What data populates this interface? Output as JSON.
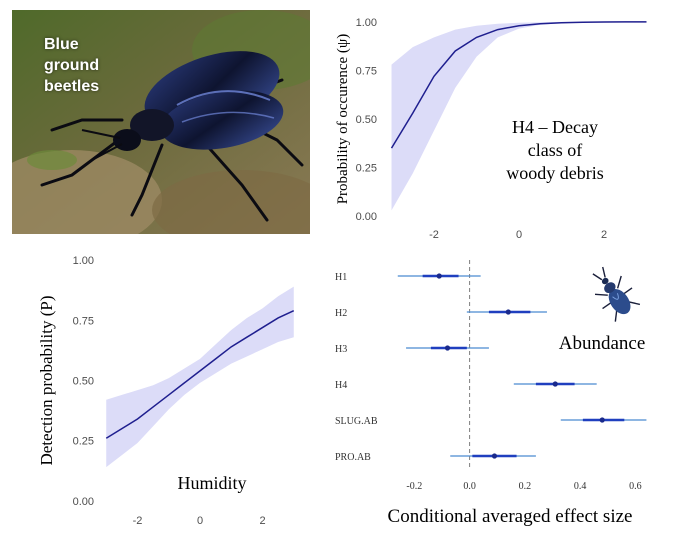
{
  "photo": {
    "label": "Blue\nground\nbeetles"
  },
  "colors": {
    "line": "#1f1f8f",
    "ribbon": "#dcdcf8",
    "point": "#1a2a8c",
    "ci_inner": "#1f3fbf",
    "ci_outer": "#4a8ad0",
    "zero_line": "#7f7f7f",
    "axis_text": "#4d4d4d"
  },
  "chart_data": [
    {
      "id": "decay",
      "type": "line",
      "annotation": "H4 – Decay\nclass of\nwoody debris",
      "ylabel": "Probability of occurence (ψ)",
      "xlabel": "",
      "xlim": [
        -3.2,
        3.2
      ],
      "ylim": [
        -0.03,
        1.03
      ],
      "x_ticks": [
        -2,
        0,
        2
      ],
      "x_tick_labels": [
        "-2",
        "0",
        "2"
      ],
      "y_ticks": [
        0,
        0.25,
        0.5,
        0.75,
        1
      ],
      "y_tick_labels": [
        "0.00",
        "0.25",
        "0.50",
        "0.75",
        "1.00"
      ],
      "x": [
        -3.0,
        -2.5,
        -2.0,
        -1.5,
        -1.0,
        -0.5,
        0.0,
        0.5,
        1.0,
        1.5,
        2.0,
        2.5,
        3.0
      ],
      "y": [
        0.35,
        0.53,
        0.72,
        0.85,
        0.92,
        0.96,
        0.98,
        0.99,
        0.995,
        0.998,
        0.999,
        1.0,
        1.0
      ],
      "lower": [
        0.03,
        0.22,
        0.44,
        0.66,
        0.82,
        0.92,
        0.965,
        0.985,
        0.993,
        0.997,
        0.999,
        1.0,
        1.0
      ],
      "upper": [
        0.78,
        0.87,
        0.92,
        0.96,
        0.98,
        0.99,
        0.995,
        0.998,
        1.0,
        1.0,
        1.0,
        1.0,
        1.0
      ]
    },
    {
      "id": "humidity",
      "type": "line",
      "annotation": "Humidity",
      "ylabel": "Detection probability (P)",
      "xlabel": "",
      "xlim": [
        -3.2,
        3.2
      ],
      "ylim": [
        -0.03,
        1.03
      ],
      "x_ticks": [
        -2,
        0,
        2
      ],
      "x_tick_labels": [
        "-2",
        "0",
        "2"
      ],
      "y_ticks": [
        0,
        0.25,
        0.5,
        0.75,
        1
      ],
      "y_tick_labels": [
        "0.00",
        "0.25",
        "0.50",
        "0.75",
        "1.00"
      ],
      "x": [
        -3.0,
        -2.5,
        -2.0,
        -1.5,
        -1.0,
        -0.5,
        0.0,
        0.5,
        1.0,
        1.5,
        2.0,
        2.5,
        3.0
      ],
      "y": [
        0.26,
        0.3,
        0.34,
        0.39,
        0.44,
        0.49,
        0.54,
        0.59,
        0.64,
        0.68,
        0.72,
        0.76,
        0.79
      ],
      "lower": [
        0.14,
        0.19,
        0.24,
        0.31,
        0.38,
        0.44,
        0.49,
        0.53,
        0.57,
        0.6,
        0.63,
        0.66,
        0.68
      ],
      "upper": [
        0.42,
        0.44,
        0.46,
        0.48,
        0.51,
        0.55,
        0.59,
        0.65,
        0.71,
        0.76,
        0.8,
        0.85,
        0.89
      ]
    },
    {
      "id": "effects",
      "type": "scatter",
      "annotation": "Abundance",
      "xlabel": "Conditional averaged effect size",
      "ylabel": "",
      "xlim": [
        -0.27,
        0.7
      ],
      "x_ticks": [
        -0.2,
        0,
        0.2,
        0.4,
        0.6
      ],
      "x_tick_labels": [
        "-0.2",
        "0.0",
        "0.2",
        "0.4",
        "0.6"
      ],
      "categories": [
        "H1",
        "H2",
        "H3",
        "H4",
        "SLUG.AB",
        "PRO.AB"
      ],
      "estimate": [
        -0.11,
        0.14,
        -0.08,
        0.31,
        0.48,
        0.09
      ],
      "ci95": [
        [
          -0.26,
          0.04
        ],
        [
          -0.01,
          0.28
        ],
        [
          -0.23,
          0.07
        ],
        [
          0.16,
          0.46
        ],
        [
          0.33,
          0.64
        ],
        [
          -0.07,
          0.24
        ]
      ],
      "ci_inner": [
        [
          -0.17,
          -0.04
        ],
        [
          0.07,
          0.22
        ],
        [
          -0.14,
          -0.01
        ],
        [
          0.24,
          0.38
        ],
        [
          0.41,
          0.56
        ],
        [
          0.01,
          0.17
        ]
      ]
    }
  ]
}
